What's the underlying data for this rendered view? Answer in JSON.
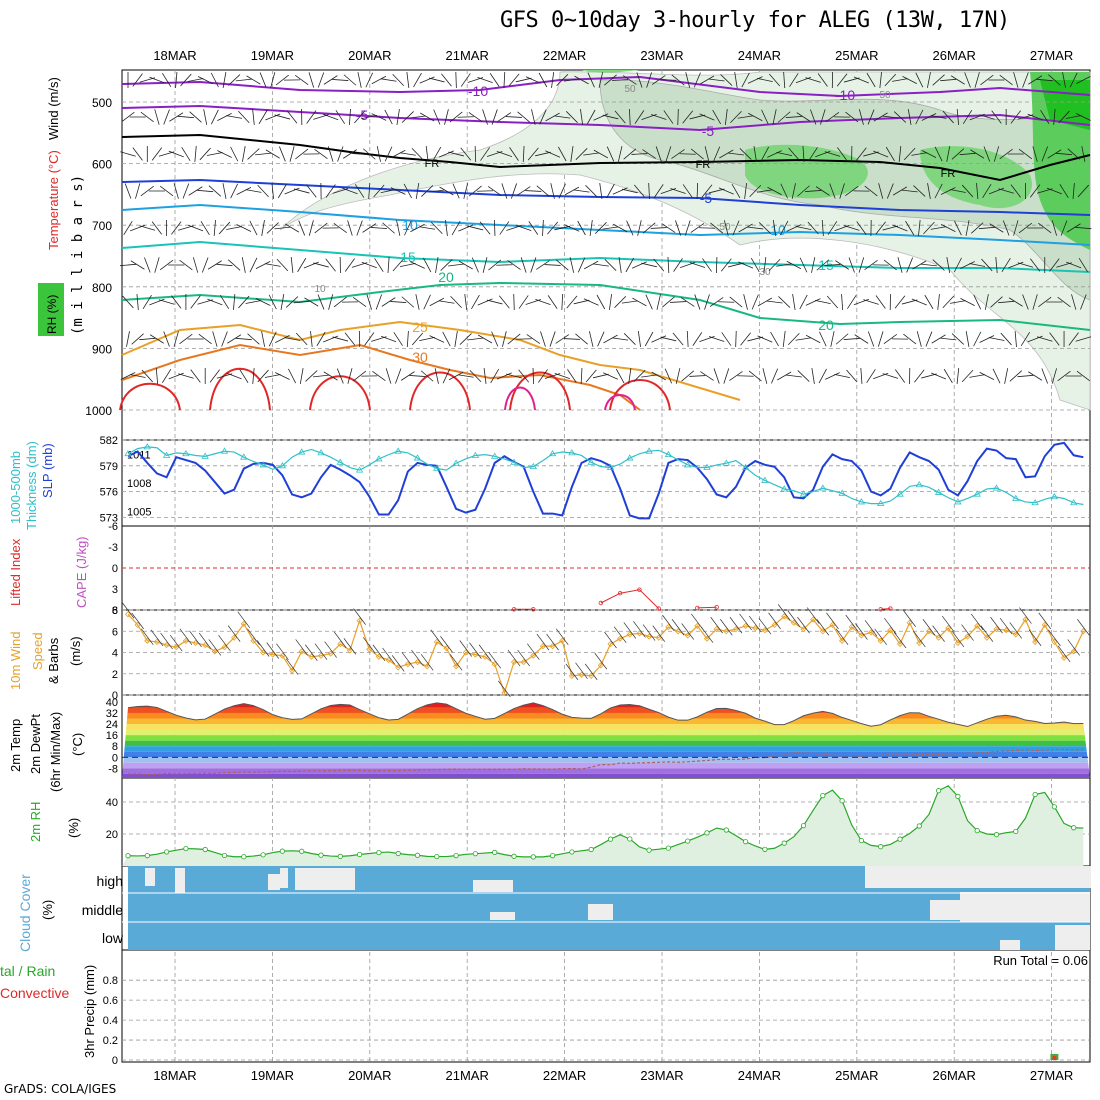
{
  "title": "GFS 0~10day 3-hourly for ALEG (13W, 17N)",
  "credit": "GrADS: COLA/IGES",
  "dates": [
    "18MAR",
    "19MAR",
    "20MAR",
    "21MAR",
    "22MAR",
    "23MAR",
    "24MAR",
    "25MAR",
    "26MAR",
    "27MAR"
  ],
  "colors": {
    "purple": "#8a1fc4",
    "black": "#000000",
    "blue": "#1f3fd6",
    "lightblue": "#1fa0e0",
    "teal": "#18c4b4",
    "seagreen": "#18b880",
    "orange": "#e8a028",
    "darkorange": "#e87820",
    "red": "#e02828",
    "magenta": "#e02090",
    "slp": "#1f3fd6",
    "thickness": "#30c0c8",
    "wind": "#e8a028",
    "rh": "#28a828",
    "cloud": "#5aaad8",
    "cloud_gap": "#eeeeee"
  },
  "chart_data": [
    {
      "type": "contour",
      "panel": "upper-air",
      "ylabel": "(m i l l i b a r s)",
      "ylim": [
        1000,
        450
      ],
      "yticks": [
        "500",
        "600",
        "700",
        "800",
        "900",
        "1000"
      ],
      "legend": [
        "RH (%)",
        "Temperature (°C)",
        "Wind (m/s)"
      ],
      "contour_labels": [
        "-10",
        "-10",
        "-5",
        "-5",
        "FR",
        "FR",
        "FR",
        "-5",
        "10",
        "10",
        "15",
        "15",
        "20",
        "20",
        "25",
        "30",
        "50",
        "50",
        "50",
        "10",
        "30"
      ]
    },
    {
      "type": "line",
      "panel": "slp-thickness",
      "left_axis": {
        "label": "1000-500mb Thickness (dm)",
        "ticks": [
          "582",
          "579",
          "576",
          "573"
        ],
        "ylim": [
          572,
          582
        ]
      },
      "right_axis": {
        "label": "SLP (mb)",
        "ticks": [
          "1011",
          "1008",
          "1005"
        ],
        "ylim": [
          1003.5,
          1012.5
        ]
      },
      "series": [
        {
          "name": "SLP (mb)",
          "values": [
            1010.8,
            1011.3,
            1010.1,
            1009.0,
            1008.6,
            1010.7,
            1010.4,
            1010.1,
            1009.3,
            1008.1,
            1006.9,
            1007.3,
            1009.5,
            1010.0,
            1010.1,
            1009.9,
            1008.8,
            1006.8,
            1006.5,
            1006.9,
            1008.6,
            1009.9,
            1009.4,
            1008.8,
            1008.1,
            1006.6,
            1004.7,
            1004.7,
            1006.2,
            1009.2,
            1010.1,
            1009.9,
            1009.8,
            1007.6,
            1005.3,
            1004.9,
            1005.2,
            1007.4,
            1010.1,
            1010.8,
            1010.2,
            1009.7,
            1007.1,
            1004.8,
            1004.8,
            1004.6,
            1007.6,
            1010.1,
            1010.6,
            1010.3,
            1009.8,
            1007.4,
            1004.6,
            1004.3,
            1004.3,
            1006.9,
            1010.1,
            1010.5,
            1010.4,
            1009.6,
            1008.4,
            1006.8,
            1006.5,
            1007.6,
            1009.6,
            1010.3,
            1009.9,
            1009.7,
            1008.6,
            1006.5,
            1006.4,
            1007.3,
            1009.7,
            1011.0,
            1010.5,
            1010.3,
            1009.3,
            1007.1,
            1006.7,
            1007.4,
            1009.6,
            1011.2,
            1010.7,
            1010.3,
            1009.4,
            1007.3,
            1006.7,
            1008.2,
            1010.3,
            1011.6,
            1011.4,
            1010.6,
            1010.5,
            1008.6,
            1008.7,
            1010.8,
            1012.0,
            1012.2,
            1010.9,
            1010.7
          ]
        },
        {
          "name": "1000-500mb Thickness (dm)",
          "values": [
            580.4,
            581.0,
            581.2,
            581.1,
            580.2,
            580.5,
            580.4,
            580.2,
            580.1,
            580.4,
            580.7,
            580.6,
            580.0,
            579.5,
            579.1,
            578.6,
            579.0,
            580.0,
            580.6,
            580.9,
            580.5,
            580.0,
            579.4,
            578.8,
            578.5,
            579.1,
            579.8,
            580.3,
            580.7,
            580.5,
            579.9,
            579.2,
            578.7,
            578.5,
            579.3,
            579.8,
            580.2,
            580.3,
            580.1,
            579.8,
            579.4,
            578.8,
            578.9,
            579.6,
            580.4,
            580.6,
            580.5,
            580.2,
            579.4,
            578.9,
            578.8,
            579.2,
            579.9,
            580.4,
            580.7,
            580.8,
            580.3,
            579.7,
            579.1,
            578.8,
            578.8,
            579.1,
            579.3,
            579.6,
            578.8,
            577.9,
            577.3,
            576.8,
            576.3,
            576.1,
            575.7,
            576.0,
            576.4,
            576.1,
            575.8,
            575.2,
            574.8,
            574.6,
            574.6,
            574.9,
            575.7,
            576.6,
            576.8,
            576.5,
            575.9,
            575.3,
            574.8,
            575.2,
            575.7,
            576.3,
            576.4,
            575.9,
            575.2,
            574.8,
            574.7,
            575.1,
            575.4,
            575.2,
            574.7,
            574.5
          ]
        }
      ]
    },
    {
      "type": "line",
      "panel": "cape-lifted-index",
      "left_axis": {
        "label": "Lifted Index",
        "ticks": [
          "-6",
          "-3",
          "0",
          "3",
          "6"
        ],
        "ylim": [
          -6,
          6
        ]
      },
      "right_axis": {
        "label": "CAPE (J/kg)"
      },
      "series": [
        {
          "name": "Lifted Index",
          "segments": [
            [
              {
                "i": 40,
                "v": 5.9
              },
              {
                "i": 42,
                "v": 5.9
              }
            ],
            [
              {
                "i": 49,
                "v": 5.0
              },
              {
                "i": 51,
                "v": 3.6
              },
              {
                "i": 53,
                "v": 3.1
              },
              {
                "i": 55,
                "v": 5.8
              }
            ],
            [
              {
                "i": 59,
                "v": 5.7
              },
              {
                "i": 61,
                "v": 5.6
              }
            ],
            [
              {
                "i": 78,
                "v": 5.9
              },
              {
                "i": 79,
                "v": 5.8
              }
            ]
          ]
        }
      ]
    },
    {
      "type": "line",
      "panel": "10m-wind",
      "ylabel": "10m Wind Speed & Barbs (m/s)",
      "ticks": [
        "8",
        "6",
        "4",
        "2",
        "0"
      ],
      "ylim": [
        0,
        8
      ],
      "series": [
        {
          "name": "Wind Speed (m/s)",
          "values": [
            7.6,
            6.6,
            5.1,
            5.0,
            4.7,
            4.5,
            5.1,
            4.9,
            4.7,
            4.1,
            4.5,
            5.4,
            6.7,
            5.1,
            4.0,
            3.8,
            3.7,
            2.3,
            4.1,
            3.6,
            3.7,
            3.9,
            4.8,
            4.2,
            7.0,
            4.3,
            3.6,
            3.3,
            2.6,
            2.9,
            3.1,
            2.7,
            5.0,
            4.4,
            2.7,
            4.0,
            3.8,
            3.6,
            2.9,
            0.2,
            3.1,
            3.1,
            3.7,
            4.6,
            4.6,
            5.1,
            1.8,
            1.9,
            1.8,
            2.8,
            4.8,
            5.3,
            5.7,
            5.8,
            5.5,
            5.4,
            6.4,
            6.0,
            5.6,
            6.5,
            5.3,
            6.2,
            6.0,
            6.2,
            6.5,
            6.3,
            6.1,
            6.6,
            7.4,
            6.8,
            6.2,
            7.1,
            6.0,
            6.6,
            5.1,
            6.4,
            5.6,
            5.9,
            5.1,
            6.1,
            4.8,
            6.8,
            4.9,
            6.0,
            5.4,
            6.3,
            4.9,
            5.5,
            6.5,
            5.4,
            6.2,
            6.1,
            5.7,
            7.1,
            5.0,
            6.6,
            5.0,
            3.5,
            4.1,
            6.0
          ]
        }
      ]
    },
    {
      "type": "area",
      "panel": "2m-temperature",
      "ylabel": "2m Temp 2m DewPt (6hr Min/Max) (°C)",
      "ticks": [
        "40",
        "32",
        "24",
        "16",
        "8",
        "0",
        "-8"
      ],
      "ylim": [
        -15,
        45
      ],
      "series": [
        {
          "name": "2m Temp",
          "values": [
            35.8,
            36.7,
            37.0,
            36.0,
            33.2,
            30.4,
            28.4,
            27.0,
            27.6,
            31.1,
            34.8,
            37.2,
            38.8,
            37.3,
            34.5,
            30.8,
            28.6,
            27.4,
            27.7,
            31.3,
            35.0,
            37.4,
            38.2,
            37.8,
            34.5,
            31.5,
            28.6,
            26.9,
            27.4,
            31.2,
            35.1,
            37.9,
            39.3,
            38.4,
            35.1,
            31.8,
            29.6,
            27.5,
            28.1,
            31.6,
            35.2,
            37.7,
            39.3,
            37.3,
            34.5,
            31.1,
            28.8,
            28.3,
            28.1,
            31.4,
            35.6,
            37.8,
            38.1,
            37.2,
            34.7,
            32.3,
            29.0,
            26.8,
            26.8,
            29.2,
            32.6,
            35.2,
            35.3,
            33.8,
            31.8,
            28.3,
            26.1,
            23.6,
            23.6,
            26.4,
            30.0,
            31.9,
            33.2,
            31.7,
            28.8,
            26.6,
            24.3,
            22.4,
            23.5,
            27.0,
            30.1,
            32.2,
            32.1,
            29.6,
            27.5,
            25.3,
            23.8,
            22.2,
            24.9,
            27.5,
            29.6,
            30.4,
            29.2,
            26.9,
            25.9,
            24.4,
            24.8,
            25.5,
            24.3,
            24.4
          ]
        },
        {
          "name": "2m DewPt",
          "values": [
            -12.0,
            -12.1,
            -12.4,
            -12.3,
            -11.7,
            -12.0,
            -11.9,
            -11.8,
            -11.6,
            -11.6,
            -11.1,
            -11.0,
            -10.6,
            -10.7,
            -10.6,
            -10.4,
            -10.1,
            -10.2,
            -10.1,
            -9.8,
            -9.8,
            -9.7,
            -9.5,
            -9.5,
            -9.4,
            -9.8,
            -9.7,
            -9.6,
            -9.7,
            -9.4,
            -9.2,
            -9.0,
            -8.9,
            -8.7,
            -8.5,
            -8.8,
            -8.7,
            -8.7,
            -8.7,
            -8.7,
            -8.7,
            -8.3,
            -8.5,
            -8.5,
            -8.6,
            -8.2,
            -8.2,
            -8.5,
            -7.2,
            -5.3,
            -5.4,
            -4.2,
            -4.4,
            -4.1,
            -3.9,
            -3.6,
            -3.4,
            -3.6,
            -3.3,
            -2.8,
            -2.3,
            -1.7,
            -1.4,
            -1.6,
            -1.3,
            -0.1,
            -0.3,
            0.9,
            1.6,
            3.2,
            3.1,
            2.7,
            2.2,
            1.5,
            0.9,
            1.3,
            0.7,
            1.2,
            1.4,
            1.7,
            1.6,
            1.7,
            1.9,
            2.0,
            2.1,
            2.4,
            2.6,
            2.9,
            3.1,
            3.3,
            4.2,
            4.5,
            4.9,
            5.4,
            4.9,
            5.1,
            5.8,
            5.7,
            5.4,
            5.4
          ]
        }
      ]
    },
    {
      "type": "line",
      "panel": "2m-rh",
      "ylabel": "2m RH (%)",
      "ticks": [
        "40",
        "20"
      ],
      "ylim": [
        0,
        55
      ],
      "series": [
        {
          "name": "2m RH (%)",
          "values": [
            6.4,
            6.3,
            6.5,
            7.4,
            8.8,
            9.9,
            10.9,
            10.7,
            10.3,
            8.5,
            6.6,
            5.8,
            5.8,
            6.2,
            7.0,
            8.4,
            9.3,
            9.5,
            9.2,
            7.8,
            6.8,
            6.2,
            6.0,
            6.4,
            7.2,
            7.8,
            8.4,
            8.7,
            7.8,
            7.1,
            6.7,
            6.0,
            5.9,
            5.9,
            6.5,
            7.3,
            7.7,
            8.1,
            8.5,
            7.1,
            6.1,
            5.7,
            5.7,
            5.7,
            6.5,
            7.6,
            8.8,
            9.5,
            10.3,
            13.4,
            16.8,
            19.5,
            16.9,
            12.0,
            9.9,
            10.5,
            11.2,
            13.4,
            15.6,
            18.0,
            20.7,
            23.7,
            22.5,
            19.0,
            15.2,
            12.5,
            10.4,
            11.1,
            14.3,
            18.3,
            25.2,
            34.8,
            44.0,
            47.4,
            40.8,
            25.6,
            15.9,
            12.9,
            12.1,
            13.5,
            16.8,
            20.3,
            25.0,
            32.2,
            47.1,
            50.1,
            43.5,
            28.3,
            22.1,
            20.0,
            19.6,
            20.8,
            21.6,
            29.9,
            44.7,
            46.0,
            37.0,
            26.6,
            23.9,
            23.7
          ]
        }
      ]
    },
    {
      "type": "area",
      "panel": "cloud-cover",
      "ylabel": "Cloud Cover (%)",
      "levels": [
        "high",
        "middle",
        "low"
      ]
    },
    {
      "type": "bar",
      "panel": "precip",
      "ylabel": "3hr Precip (mm)",
      "legend": [
        "Total / Rain",
        "Convective"
      ],
      "ticks": [
        "0.8",
        "0.6",
        "0.4",
        "0.2",
        "0"
      ],
      "ylim": [
        0,
        1
      ],
      "run_total": "Run Total = 0.06",
      "series": [
        {
          "name": "Total / Rain",
          "index": 96,
          "value": 0.06
        },
        {
          "name": "Convective",
          "index": 96,
          "value": 0.04
        }
      ]
    }
  ],
  "labels": {
    "rh_box": "RH (%)",
    "temp_lbl": "Temperature (°C)",
    "wind_lbl": "Wind (m/s)",
    "mb_lbl": "(m i l l i b a r s)",
    "thick_lbl": "1000-500mb",
    "thick_lbl2": "Thickness (dm)",
    "slp_lbl": "SLP (mb)",
    "li_lbl": "Lifted Index",
    "cape_lbl": "CAPE (J/kg)",
    "wind10_lbl": "10m Wind",
    "speed_lbl": "Speed",
    "barbs_lbl": "& Barbs",
    "ms_lbl": "(m/s)",
    "t2m_lbl": "2m Temp",
    "dp_lbl": "2m DewPt",
    "mm6_lbl": "(6hr Min/Max)",
    "degc_lbl": "(°C)",
    "rh2_lbl": "2m RH",
    "pct_lbl": "(%)",
    "cc_lbl": "Cloud Cover",
    "cc_pct": "(%)",
    "high": "high",
    "middle": "middle",
    "low": "low",
    "precip_lbl": "3hr Precip (mm)",
    "total_rain": "tal / Rain",
    "convective": "Convective"
  }
}
